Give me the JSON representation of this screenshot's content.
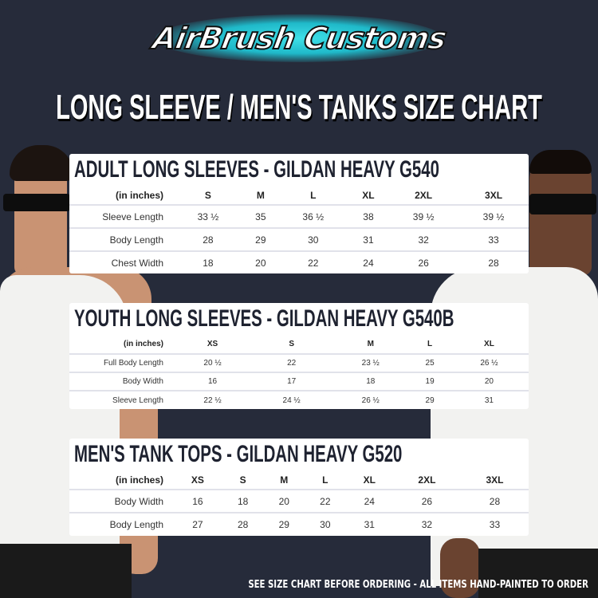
{
  "logo": {
    "text": "AirBrush Customs"
  },
  "title": "LONG SLEEVE / MEN'S TANKS SIZE CHART",
  "tables": [
    {
      "title": "ADULT LONG SLEEVES - GILDAN HEAVY G540",
      "unit": "(in inches)",
      "sizes": [
        "S",
        "M",
        "L",
        "XL",
        "2XL",
        "3XL"
      ],
      "rows": [
        {
          "label": "Sleeve Length",
          "values": [
            "33 ½",
            "35",
            "36 ½",
            "38",
            "39 ½",
            "39 ½"
          ]
        },
        {
          "label": "Body Length",
          "values": [
            "28",
            "29",
            "30",
            "31",
            "32",
            "33"
          ]
        },
        {
          "label": "Chest Width",
          "values": [
            "18",
            "20",
            "22",
            "24",
            "26",
            "28"
          ]
        }
      ]
    },
    {
      "title": "YOUTH LONG SLEEVES - GILDAN HEAVY G540B",
      "unit": "(in inches)",
      "sizes": [
        "XS",
        "S",
        "M",
        "L",
        "XL"
      ],
      "rows": [
        {
          "label": "Full Body Length",
          "values": [
            "20 ½",
            "22",
            "23 ½",
            "25",
            "26 ½"
          ]
        },
        {
          "label": "Body Width",
          "values": [
            "16",
            "17",
            "18",
            "19",
            "20"
          ]
        },
        {
          "label": "Sleeve Length",
          "values": [
            "22 ½",
            "24 ½",
            "26 ½",
            "29",
            "31"
          ]
        }
      ]
    },
    {
      "title": "MEN'S TANK TOPS - GILDAN HEAVY G520",
      "unit": "(in inches)",
      "sizes": [
        "XS",
        "S",
        "M",
        "L",
        "XL",
        "2XL",
        "3XL"
      ],
      "rows": [
        {
          "label": "Body Width",
          "values": [
            "16",
            "18",
            "20",
            "22",
            "24",
            "26",
            "28"
          ]
        },
        {
          "label": "Body Length",
          "values": [
            "27",
            "28",
            "29",
            "30",
            "31",
            "32",
            "33"
          ]
        }
      ]
    }
  ],
  "footer": "SEE SIZE CHART BEFORE ORDERING - ALL ITEMS HAND-PAINTED TO ORDER",
  "colors": {
    "background": "#262b3a",
    "logo_glow": "#3fe0e8",
    "panel": "#ffffff",
    "heading": "#1e2230"
  }
}
